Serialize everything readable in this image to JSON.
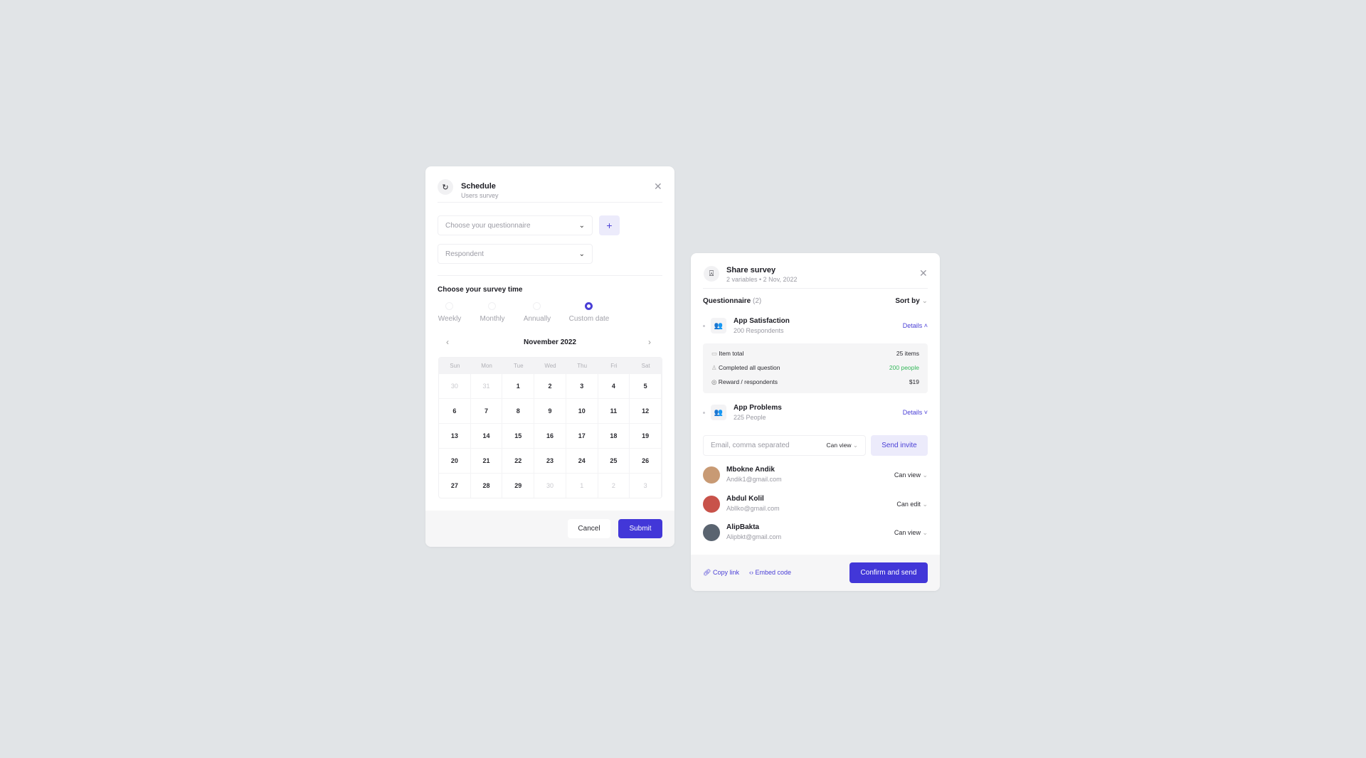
{
  "schedule": {
    "title": "Schedule",
    "subtitle": "Users survey",
    "questionnaire_placeholder": "Choose your questionnaire",
    "respondent_placeholder": "Respondent",
    "add_label": "+",
    "time_heading": "Choose your survey time",
    "options": [
      {
        "label": "Weekly",
        "selected": false
      },
      {
        "label": "Monthly",
        "selected": false
      },
      {
        "label": "Annually",
        "selected": false
      },
      {
        "label": "Custom date",
        "selected": true
      }
    ],
    "calendar": {
      "month": "November 2022",
      "weekdays": [
        "Sun",
        "Mon",
        "Tue",
        "Wed",
        "Thu",
        "Fri",
        "Sat"
      ],
      "days": [
        {
          "d": "30",
          "m": true
        },
        {
          "d": "31",
          "m": true
        },
        {
          "d": "1"
        },
        {
          "d": "2"
        },
        {
          "d": "3"
        },
        {
          "d": "4"
        },
        {
          "d": "5"
        },
        {
          "d": "6"
        },
        {
          "d": "7"
        },
        {
          "d": "8"
        },
        {
          "d": "9"
        },
        {
          "d": "10"
        },
        {
          "d": "11"
        },
        {
          "d": "12"
        },
        {
          "d": "13"
        },
        {
          "d": "14"
        },
        {
          "d": "15"
        },
        {
          "d": "16"
        },
        {
          "d": "17"
        },
        {
          "d": "18"
        },
        {
          "d": "19"
        },
        {
          "d": "20"
        },
        {
          "d": "21"
        },
        {
          "d": "22"
        },
        {
          "d": "23"
        },
        {
          "d": "24"
        },
        {
          "d": "25"
        },
        {
          "d": "26"
        },
        {
          "d": "27"
        },
        {
          "d": "28"
        },
        {
          "d": "29"
        },
        {
          "d": "30",
          "m": true
        },
        {
          "d": "1",
          "m": true
        },
        {
          "d": "2",
          "m": true
        },
        {
          "d": "3",
          "m": true
        }
      ]
    },
    "cancel_label": "Cancel",
    "submit_label": "Submit"
  },
  "share": {
    "title": "Share survey",
    "subtitle": "2 variables • 2 Nov, 2022",
    "questionnaire_label": "Questionnaire",
    "questionnaire_count": "(2)",
    "sort_label": "Sort by",
    "items": [
      {
        "title": "App Satisfaction",
        "sub": "200 Respondents",
        "details": "Details",
        "expanded": true
      },
      {
        "title": "App Problems",
        "sub": "225 People",
        "details": "Details",
        "expanded": false
      }
    ],
    "detail_rows": [
      {
        "icon": "chart-icon",
        "label": "Item total",
        "value": "25 items"
      },
      {
        "icon": "user-check-icon",
        "label": "Completed all question",
        "value": "200 people"
      },
      {
        "icon": "coin-icon",
        "label": "Reward / respondents",
        "value": "$19"
      }
    ],
    "email_placeholder": "Email, comma separated",
    "email_permission": "Can view",
    "send_invite_label": "Send invite",
    "people": [
      {
        "name": "Mbokne Andik",
        "email": "Andik1@gmail.com",
        "permission": "Can view",
        "color": "#c89a74"
      },
      {
        "name": "Abdul Kolil",
        "email": "Abllko@gmail.com",
        "permission": "Can edit",
        "color": "#c8524a"
      },
      {
        "name": "AlipBakta",
        "email": "Alipbkt@gmail.com",
        "permission": "Can view",
        "color": "#5a6470"
      }
    ],
    "copy_link_label": "Copy link",
    "embed_label": "Embed code",
    "confirm_label": "Confirm and send"
  },
  "colors": {
    "accent": "#4237d8",
    "success": "#35b85a",
    "background": "#e1e4e7"
  }
}
